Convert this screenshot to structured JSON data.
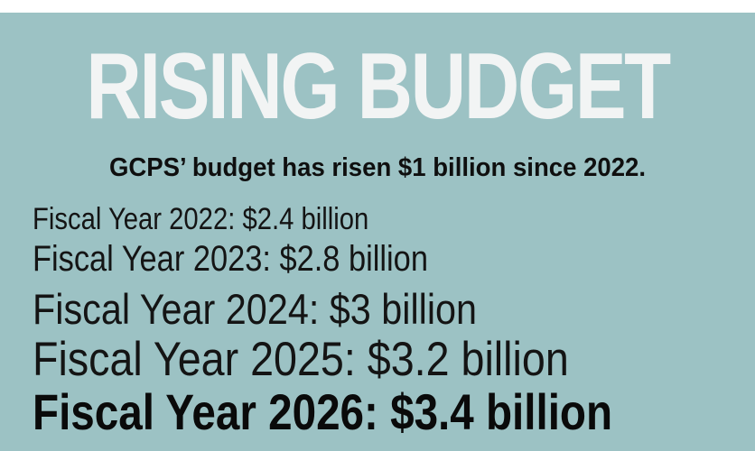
{
  "colors": {
    "background": "#9cc2c4",
    "headline": "#f2f4f4",
    "text": "#141414"
  },
  "headline": "RISING BUDGET",
  "subhead": "GCPS’ budget has risen $1 billion since 2022.",
  "budget_lines": [
    "Fiscal Year 2022: $2.4 billion",
    "Fiscal Year 2023: $2.8 billion",
    "Fiscal Year 2024: $3 billion",
    "Fiscal Year 2025: $3.2 billion",
    "Fiscal Year 2026: $3.4 billion"
  ]
}
